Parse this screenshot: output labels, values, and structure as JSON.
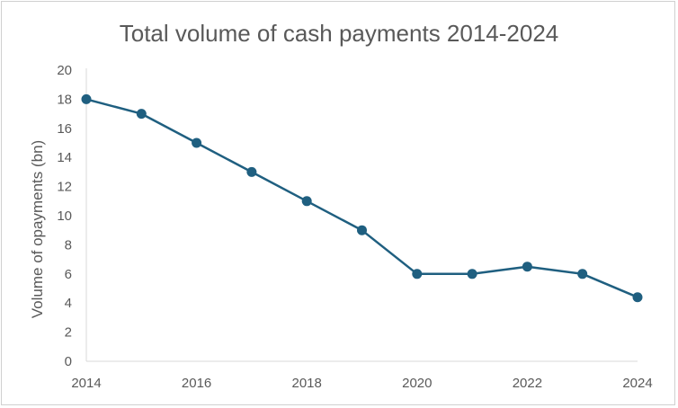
{
  "chart_data": {
    "type": "line",
    "title": "Total volume of cash payments 2014-2024",
    "xlabel": "",
    "ylabel": "Volume of opayments (bn)",
    "x": [
      2014,
      2015,
      2016,
      2017,
      2018,
      2019,
      2020,
      2021,
      2022,
      2023,
      2024
    ],
    "x_tick_labels": [
      "2014",
      "2016",
      "2018",
      "2020",
      "2022",
      "2024"
    ],
    "y_tick_labels": [
      "0",
      "2",
      "4",
      "6",
      "8",
      "10",
      "12",
      "14",
      "16",
      "18",
      "20"
    ],
    "series": [
      {
        "values": [
          18,
          17,
          15,
          13,
          11,
          9,
          6,
          6,
          6.5,
          6,
          4.4
        ],
        "color": "#1f5f80"
      }
    ],
    "xlim": [
      2014,
      2024
    ],
    "ylim": [
      0,
      20
    ],
    "grid": false,
    "legend": "none",
    "axis_color": "#d9d9d9",
    "text_color": "#595959"
  }
}
